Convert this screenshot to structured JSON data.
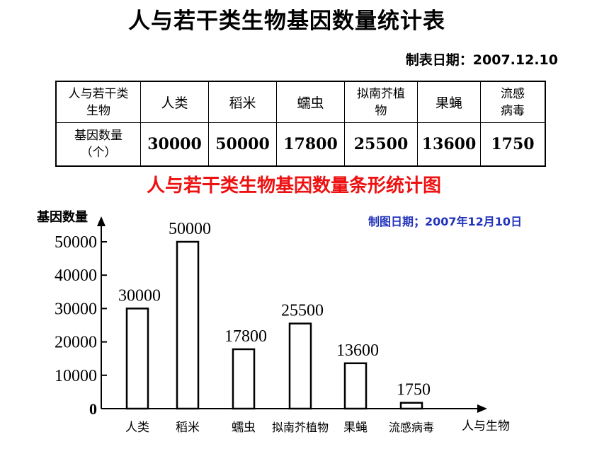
{
  "header": {
    "title": "人与若干类生物基因数量统计表",
    "table_date": "制表日期：2007.12.10"
  },
  "table": {
    "row_label_1": "人与若干类生物",
    "row_label_2": "基因数量（个）",
    "organisms": [
      "人类",
      "稻米",
      "蠕虫",
      "拟南芥植物",
      "果蝇",
      "流感病毒"
    ],
    "gene_counts": [
      "30000",
      "50000",
      "17800",
      "25500",
      "13600",
      "1750"
    ]
  },
  "chart_heading": {
    "title": "人与若干类生物基因数量条形统计图",
    "date": "制图日期；2007年12月10日"
  },
  "colors": {
    "chart_title": "#ee1111",
    "chart_date": "#2233bb",
    "bars": "#ffffff",
    "outline": "#000000"
  },
  "chart_data": {
    "type": "bar",
    "title": "人与若干类生物基因数量条形统计图",
    "ylabel": "基因数量",
    "xlabel": "人与生物",
    "categories": [
      "人类",
      "稻米",
      "蠕虫",
      "拟南芥植物",
      "果蝇",
      "流感病毒"
    ],
    "values": [
      30000,
      50000,
      17800,
      25500,
      13600,
      1750
    ],
    "data_labels": [
      "30000",
      "50000",
      "17800",
      "25500",
      "13600",
      "1750"
    ],
    "yticks": [
      0,
      10000,
      20000,
      30000,
      40000,
      50000
    ],
    "ylim": [
      0,
      50000
    ],
    "grid": false,
    "legend": "none"
  }
}
